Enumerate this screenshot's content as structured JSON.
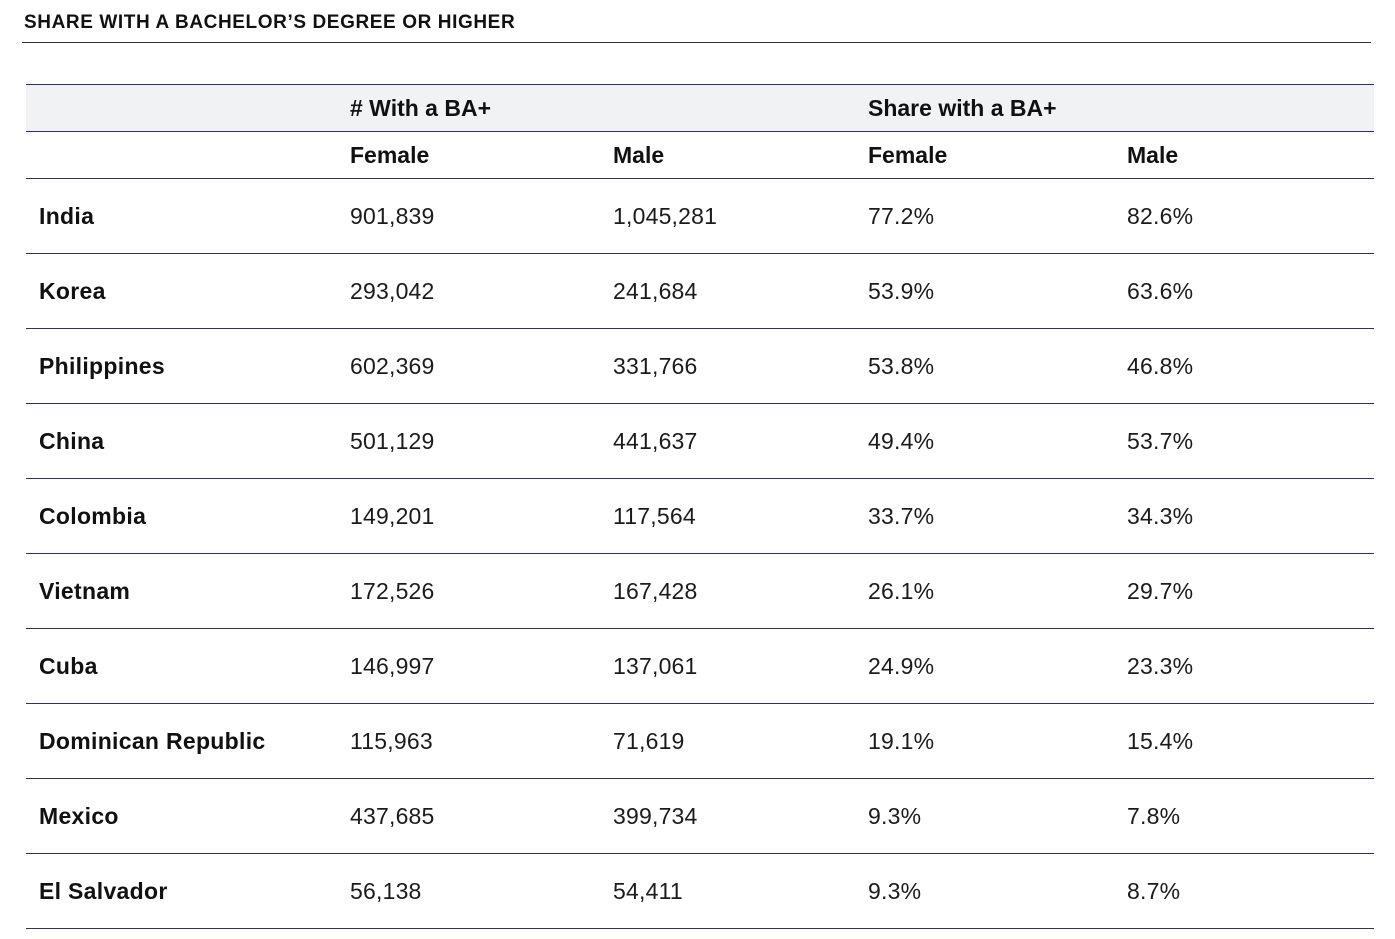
{
  "title": "SHARE WITH A BACHELOR’S DEGREE OR HIGHER",
  "header": {
    "group_count": "# With a BA+",
    "group_share": "Share with a BA+",
    "female_1": "Female",
    "male_1": "Male",
    "female_2": "Female",
    "male_2": "Male"
  },
  "rows": [
    {
      "country": "India",
      "female_count": "901,839",
      "male_count": "1,045,281",
      "female_share": "77.2%",
      "male_share": "82.6%"
    },
    {
      "country": "Korea",
      "female_count": "293,042",
      "male_count": "241,684",
      "female_share": "53.9%",
      "male_share": "63.6%"
    },
    {
      "country": "Philippines",
      "female_count": "602,369",
      "male_count": "331,766",
      "female_share": "53.8%",
      "male_share": "46.8%"
    },
    {
      "country": "China",
      "female_count": "501,129",
      "male_count": "441,637",
      "female_share": "49.4%",
      "male_share": "53.7%"
    },
    {
      "country": "Colombia",
      "female_count": "149,201",
      "male_count": "117,564",
      "female_share": "33.7%",
      "male_share": "34.3%"
    },
    {
      "country": "Vietnam",
      "female_count": "172,526",
      "male_count": "167,428",
      "female_share": "26.1%",
      "male_share": "29.7%"
    },
    {
      "country": "Cuba",
      "female_count": "146,997",
      "male_count": "137,061",
      "female_share": "24.9%",
      "male_share": "23.3%"
    },
    {
      "country": "Dominican Republic",
      "female_count": "115,963",
      "male_count": "71,619",
      "female_share": "19.1%",
      "male_share": "15.4%"
    },
    {
      "country": "Mexico",
      "female_count": "437,685",
      "male_count": "399,734",
      "female_share": "9.3%",
      "male_share": "7.8%"
    },
    {
      "country": "El Salvador",
      "female_count": "56,138",
      "male_count": "54,411",
      "female_share": "9.3%",
      "male_share": "8.7%"
    }
  ]
}
